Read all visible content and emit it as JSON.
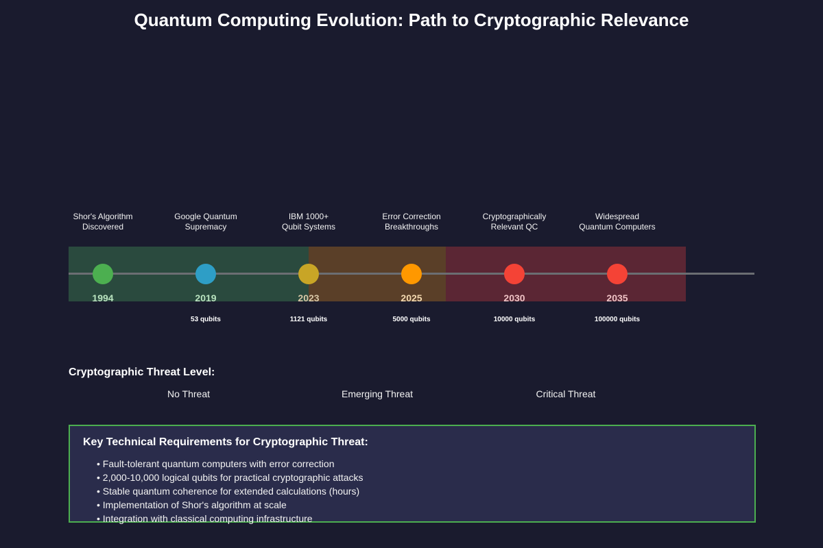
{
  "title": "Quantum Computing Evolution: Path to Cryptographic Relevance",
  "colors": {
    "background": "#1a1b2e",
    "zone_safe": "#2a4a3e",
    "zone_emerging": "#5a3f28",
    "zone_critical": "#5b2634",
    "axis": "#6b6e72",
    "box_border": "#4caf50",
    "box_fill": "#2a2c4b"
  },
  "milestones": [
    {
      "label_line1": "Shor's Algorithm",
      "label_line2": "Discovered",
      "year": "1994",
      "qubits": "",
      "dot_color": "#4caf50",
      "year_color": "#b9e3bf"
    },
    {
      "label_line1": "Google Quantum",
      "label_line2": "Supremacy",
      "year": "2019",
      "qubits": "53 qubits",
      "dot_color": "#2e9ec6",
      "year_color": "#b9e3bf"
    },
    {
      "label_line1": "IBM 1000+",
      "label_line2": "Qubit Systems",
      "year": "2023",
      "qubits": "1121 qubits",
      "dot_color": "#c8a526",
      "year_color": "#d8c7a6"
    },
    {
      "label_line1": "Error Correction",
      "label_line2": "Breakthroughs",
      "year": "2025",
      "qubits": "5000 qubits",
      "dot_color": "#ff9800",
      "year_color": "#f3d9b0"
    },
    {
      "label_line1": "Cryptographically",
      "label_line2": "Relevant QC",
      "year": "2030",
      "qubits": "10000 qubits",
      "dot_color": "#f44336",
      "year_color": "#efc3c5"
    },
    {
      "label_line1": "Widespread",
      "label_line2": "Quantum Computers",
      "year": "2035",
      "qubits": "100000 qubits",
      "dot_color": "#f44336",
      "year_color": "#efc3c5"
    }
  ],
  "threat": {
    "heading": "Cryptographic Threat Level:",
    "levels": [
      "No Threat",
      "Emerging Threat",
      "Critical Threat"
    ]
  },
  "requirements": {
    "heading": "Key Technical Requirements for Cryptographic Threat:",
    "items": [
      "• Fault-tolerant quantum computers with error correction",
      "• 2,000-10,000 logical qubits for practical cryptographic attacks",
      "• Stable quantum coherence for extended calculations (hours)",
      "• Implementation of Shor's algorithm at scale",
      "• Integration with classical computing infrastructure"
    ]
  }
}
